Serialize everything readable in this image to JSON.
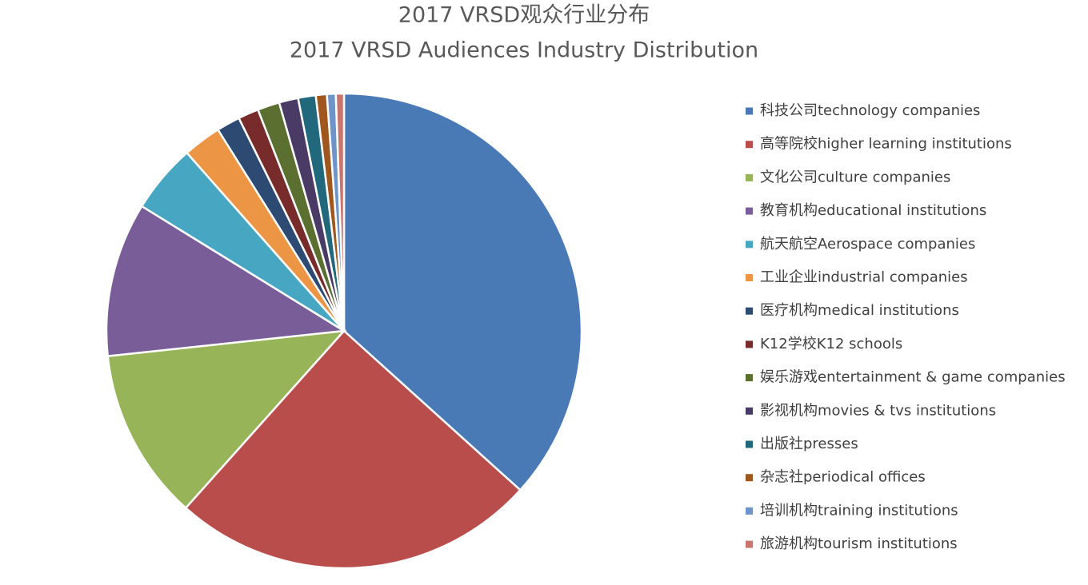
{
  "chart_data": {
    "type": "pie",
    "title": "2017 VRSD观众行业分布",
    "subtitle": "2017 VRSD Audiences Industry Distribution",
    "categories": [
      "科技公司technology companies",
      "高等院校higher learning institutions",
      "文化公司culture companies",
      "教育机构educational institutions",
      "航天航空Aerospace companies",
      "工业企业industrial companies",
      "医疗机构medical institutions",
      "K12学校K12 schools",
      "娱乐游戏entertainment & game companies",
      "影视机构movies & tvs institutions",
      "出版社presses",
      "杂志社periodical offices",
      "培训机构training institutions",
      "旅游机构tourism institutions"
    ],
    "values": [
      36.7,
      24.9,
      11.7,
      10.5,
      4.7,
      2.6,
      1.6,
      1.4,
      1.5,
      1.3,
      1.2,
      0.75,
      0.6,
      0.55
    ],
    "colors": [
      "#4a7ab5",
      "#b94d4b",
      "#97b558",
      "#785d99",
      "#47a6c1",
      "#eb9545",
      "#2c4a72",
      "#772c2b",
      "#5b7030",
      "#4a3b66",
      "#21687d",
      "#a0571d",
      "#6e94c9",
      "#ca7470"
    ],
    "legend": "right"
  }
}
